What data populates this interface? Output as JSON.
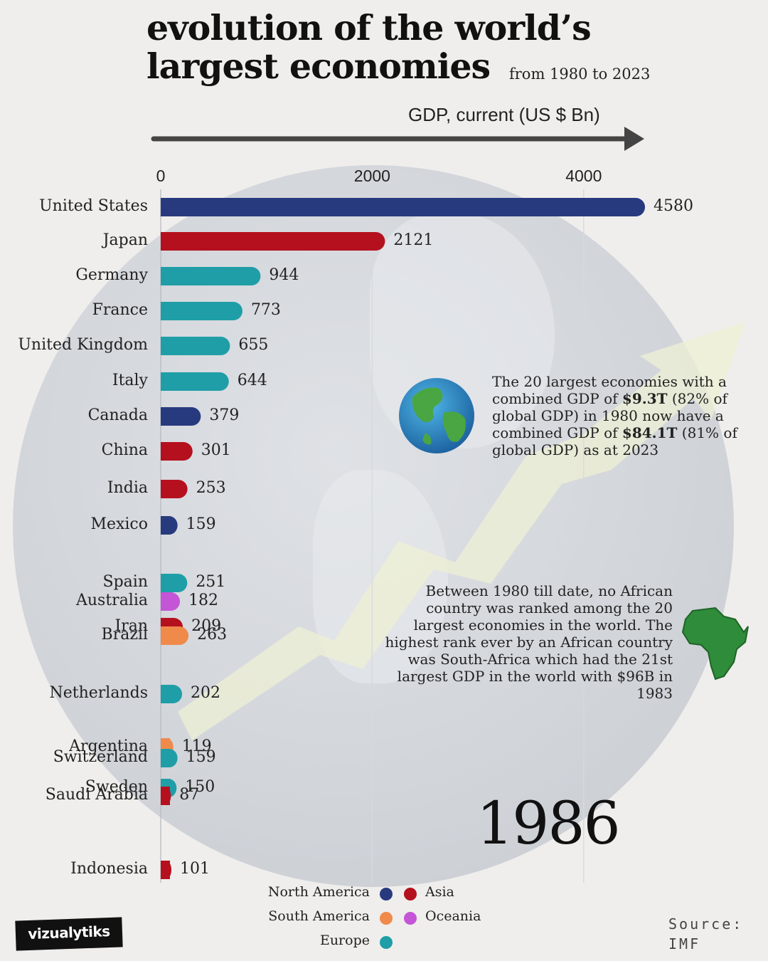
{
  "title_line1": "evolution of the world’s",
  "title_line2": "largest economies",
  "subtitle": "from 1980 to 2023",
  "axis_title": "GDP, current (US $ Bn)",
  "year": "1986",
  "info": {
    "p1": "The 20 largest economies with a combined GDP of ",
    "b1": "$9.3T",
    "p2": " (82% of global GDP) in 1980 now have a combined GDP of ",
    "b2": "$84.1T",
    "p3": " (81% of global GDP) as at 2023"
  },
  "africa_note": "Between 1980 till date, no African country was ranked among the 20 largest economies in the world. The highest rank ever by an African country was South-Africa which had the 21st largest GDP in the world with $96B in 1983",
  "legend": [
    {
      "label": "North America",
      "color": "#283a7e"
    },
    {
      "label": "Asia",
      "color": "#b5101e"
    },
    {
      "label": "South America",
      "color": "#f08a4b"
    },
    {
      "label": "Oceania",
      "color": "#c455d6"
    },
    {
      "label": "Europe",
      "color": "#1f9ea7"
    }
  ],
  "source_line1": "Source:",
  "source_line2": "IMF",
  "logo": "vizualytiks",
  "icons": {
    "globe": "globe-icon",
    "africa": "africa-map-icon",
    "trend": "trend-arrow-icon"
  },
  "chart_data": {
    "type": "bar",
    "orientation": "horizontal",
    "title": "evolution of the world’s largest economies",
    "xlabel": "GDP, current (US $ Bn)",
    "xlim": [
      0,
      4600
    ],
    "ticks": [
      0,
      2000,
      4000
    ],
    "grid": true,
    "categories": [
      "United States",
      "Japan",
      "Germany",
      "France",
      "United Kingdom",
      "Italy",
      "Canada",
      "China",
      "India",
      "Mexico",
      "Spain",
      "Australia",
      "Iran",
      "Brazil",
      "Netherlands",
      "Argentina",
      "Switzerland",
      "Sweden",
      "Saudi Arabia",
      "Indonesia"
    ],
    "values": [
      4580,
      2121,
      944,
      773,
      655,
      644,
      379,
      301,
      253,
      159,
      251,
      182,
      209,
      263,
      202,
      119,
      159,
      150,
      87,
      101
    ],
    "regions": [
      "North America",
      "Asia",
      "Europe",
      "Europe",
      "Europe",
      "Europe",
      "North America",
      "Asia",
      "Asia",
      "North America",
      "Europe",
      "Oceania",
      "Asia",
      "South America",
      "Europe",
      "South America",
      "Europe",
      "Europe",
      "Asia",
      "Asia"
    ]
  }
}
